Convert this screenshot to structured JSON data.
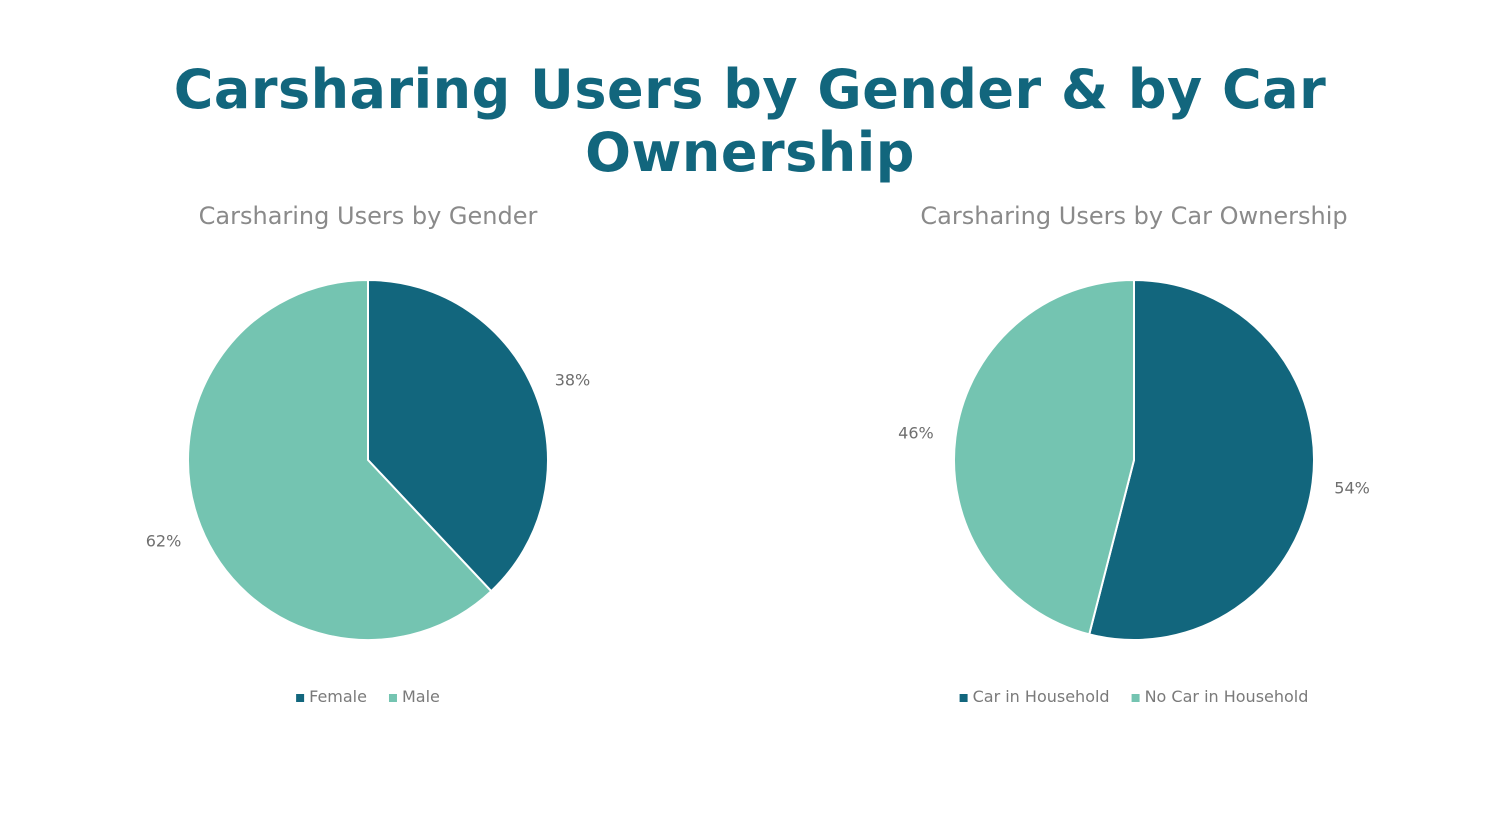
{
  "page": {
    "title": "Carsharing Users by Gender & by Car Ownership"
  },
  "colors": {
    "title": "#12667d",
    "dark_teal": "#12667d",
    "mint": "#74c4b1"
  },
  "chart_data": [
    {
      "type": "pie",
      "title": "Carsharing Users by Gender",
      "legend": "bottom",
      "slices": [
        {
          "label": "Female",
          "value": 38,
          "display": "38%",
          "color": "#12667d"
        },
        {
          "label": "Male",
          "value": 62,
          "display": "62%",
          "color": "#74c4b1"
        }
      ]
    },
    {
      "type": "pie",
      "title": "Carsharing Users by Car Ownership",
      "legend": "bottom",
      "slices": [
        {
          "label": "Car in Household",
          "value": 54,
          "display": "54%",
          "color": "#12667d"
        },
        {
          "label": "No Car in Household",
          "value": 46,
          "display": "46%",
          "color": "#74c4b1"
        }
      ]
    }
  ]
}
